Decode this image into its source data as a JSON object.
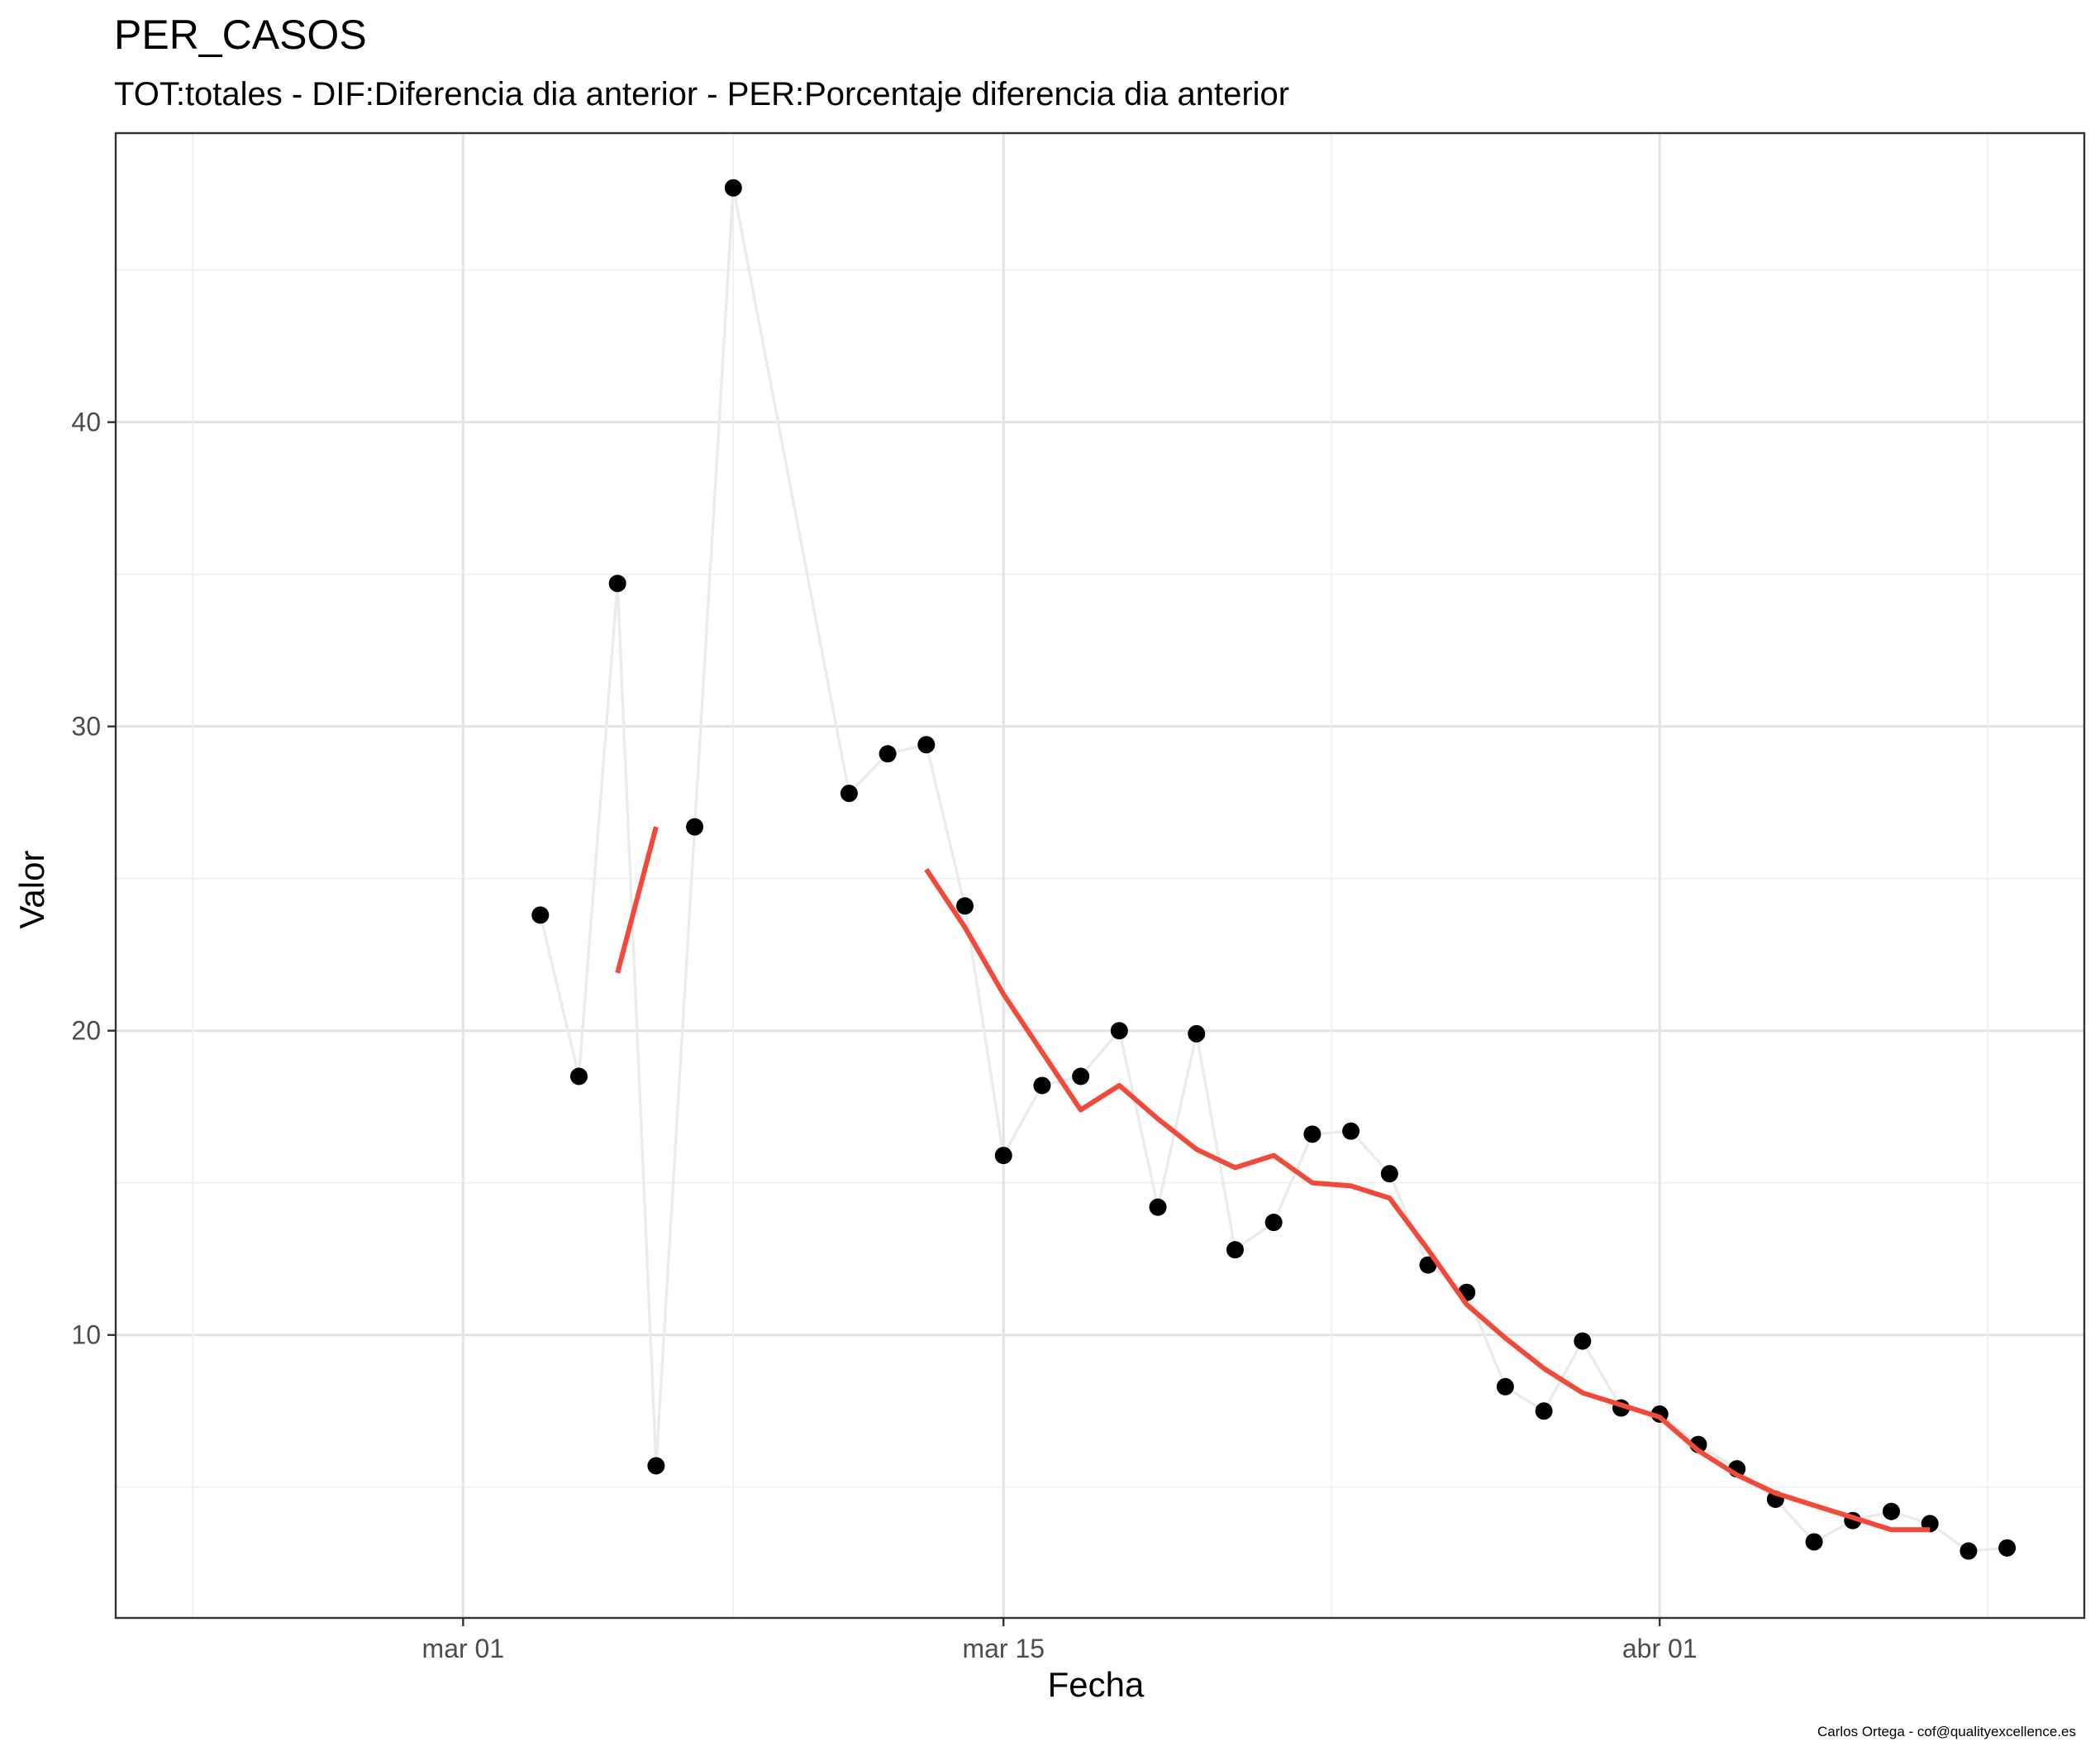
{
  "chart_data": {
    "type": "line",
    "title": "PER_CASOS",
    "subtitle": "TOT:totales - DIF:Diferencia dia anterior - PER:Porcentaje diferencia dia anterior",
    "xlabel": "Fecha",
    "ylabel": "Valor",
    "caption": "Carlos Ortega - cof@qualityexcellence.es",
    "x_tick_labels": [
      "mar 01",
      "mar 15",
      "abr 01"
    ],
    "x_tick_dates": [
      "2020-03-01",
      "2020-03-15",
      "2020-04-01"
    ],
    "y_ticks": [
      10,
      20,
      30,
      40
    ],
    "xlim": [
      "2020-02-21",
      "2020-04-12"
    ],
    "ylim": [
      0.7,
      49.5
    ],
    "grid": true,
    "legend": "none",
    "series": [
      {
        "kind": "points-with-line",
        "color": "#000000",
        "line_color": "#ebebeb",
        "points": [
          {
            "x": "2020-03-03",
            "y": 23.8
          },
          {
            "x": "2020-03-04",
            "y": 18.5
          },
          {
            "x": "2020-03-05",
            "y": 34.7
          },
          {
            "x": "2020-03-06",
            "y": 5.7
          },
          {
            "x": "2020-03-07",
            "y": 26.7
          },
          {
            "x": "2020-03-08",
            "y": 47.7
          },
          {
            "x": "2020-03-11",
            "y": 27.8
          },
          {
            "x": "2020-03-12",
            "y": 29.1
          },
          {
            "x": "2020-03-13",
            "y": 29.4
          },
          {
            "x": "2020-03-14",
            "y": 24.1
          },
          {
            "x": "2020-03-15",
            "y": 15.9
          },
          {
            "x": "2020-03-16",
            "y": 18.2
          },
          {
            "x": "2020-03-17",
            "y": 18.5
          },
          {
            "x": "2020-03-18",
            "y": 20.0
          },
          {
            "x": "2020-03-19",
            "y": 14.2
          },
          {
            "x": "2020-03-20",
            "y": 19.9
          },
          {
            "x": "2020-03-21",
            "y": 12.8
          },
          {
            "x": "2020-03-22",
            "y": 13.7
          },
          {
            "x": "2020-03-23",
            "y": 16.6
          },
          {
            "x": "2020-03-24",
            "y": 16.7
          },
          {
            "x": "2020-03-25",
            "y": 15.3
          },
          {
            "x": "2020-03-26",
            "y": 12.3
          },
          {
            "x": "2020-03-27",
            "y": 11.4
          },
          {
            "x": "2020-03-28",
            "y": 8.3
          },
          {
            "x": "2020-03-29",
            "y": 7.5
          },
          {
            "x": "2020-03-30",
            "y": 9.8
          },
          {
            "x": "2020-03-31",
            "y": 7.6
          },
          {
            "x": "2020-04-01",
            "y": 7.4
          },
          {
            "x": "2020-04-02",
            "y": 6.4
          },
          {
            "x": "2020-04-03",
            "y": 5.6
          },
          {
            "x": "2020-04-04",
            "y": 4.6
          },
          {
            "x": "2020-04-05",
            "y": 3.2
          },
          {
            "x": "2020-04-06",
            "y": 3.9
          },
          {
            "x": "2020-04-07",
            "y": 4.2
          },
          {
            "x": "2020-04-08",
            "y": 3.8
          },
          {
            "x": "2020-04-09",
            "y": 2.9
          },
          {
            "x": "2020-04-10",
            "y": 3.0
          }
        ]
      },
      {
        "kind": "line",
        "color": "#f24a3a",
        "segments": [
          [
            {
              "x": "2020-03-05",
              "y": 21.9
            },
            {
              "x": "2020-03-06",
              "y": 26.7
            }
          ],
          [
            {
              "x": "2020-03-13",
              "y": 25.3
            },
            {
              "x": "2020-03-14",
              "y": 23.4
            },
            {
              "x": "2020-03-15",
              "y": 21.2
            },
            {
              "x": "2020-03-16",
              "y": 19.3
            },
            {
              "x": "2020-03-17",
              "y": 17.4
            },
            {
              "x": "2020-03-18",
              "y": 18.2
            },
            {
              "x": "2020-03-19",
              "y": 17.1
            },
            {
              "x": "2020-03-20",
              "y": 16.1
            },
            {
              "x": "2020-03-21",
              "y": 15.5
            },
            {
              "x": "2020-03-22",
              "y": 15.9
            },
            {
              "x": "2020-03-23",
              "y": 15.0
            },
            {
              "x": "2020-03-24",
              "y": 14.9
            },
            {
              "x": "2020-03-25",
              "y": 14.5
            },
            {
              "x": "2020-03-26",
              "y": 12.8
            },
            {
              "x": "2020-03-27",
              "y": 11.0
            },
            {
              "x": "2020-03-28",
              "y": 9.9
            },
            {
              "x": "2020-03-29",
              "y": 8.9
            },
            {
              "x": "2020-03-30",
              "y": 8.1
            },
            {
              "x": "2020-03-31",
              "y": 7.7
            },
            {
              "x": "2020-04-01",
              "y": 7.3
            },
            {
              "x": "2020-04-02",
              "y": 6.2
            },
            {
              "x": "2020-04-03",
              "y": 5.4
            },
            {
              "x": "2020-04-04",
              "y": 4.8
            },
            {
              "x": "2020-04-05",
              "y": 4.4
            },
            {
              "x": "2020-04-06",
              "y": 4.0
            },
            {
              "x": "2020-04-07",
              "y": 3.6
            },
            {
              "x": "2020-04-08",
              "y": 3.6
            }
          ]
        ]
      }
    ]
  }
}
